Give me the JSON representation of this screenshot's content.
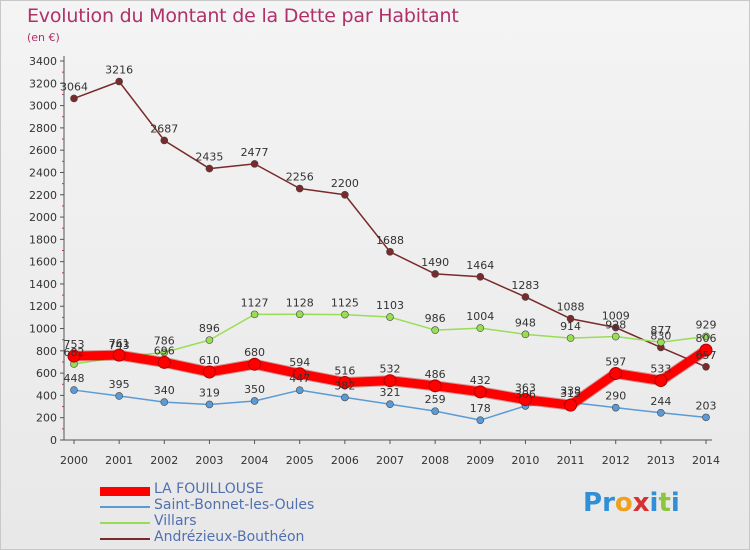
{
  "title": "Evolution du Montant de la Dette par Habitant",
  "subtitle": "(en €)",
  "brand": {
    "letters": [
      {
        "ch": "P",
        "color": "#2f8fd8"
      },
      {
        "ch": "r",
        "color": "#2f8fd8"
      },
      {
        "ch": "o",
        "color": "#f0a020"
      },
      {
        "ch": "x",
        "color": "#d83030"
      },
      {
        "ch": "i",
        "color": "#2f8fd8"
      },
      {
        "ch": "t",
        "color": "#8cc63f"
      },
      {
        "ch": "i",
        "color": "#2f8fd8"
      }
    ]
  },
  "chart_data": {
    "type": "line",
    "x": [
      "2000",
      "2001",
      "2002",
      "2003",
      "2004",
      "2005",
      "2006",
      "2007",
      "2008",
      "2009",
      "2010",
      "2011",
      "2012",
      "2013",
      "2014"
    ],
    "ylim": [
      0,
      3400
    ],
    "yticks": [
      0,
      200,
      400,
      600,
      800,
      1000,
      1200,
      1400,
      1600,
      1800,
      2000,
      2200,
      2400,
      2600,
      2800,
      3000,
      3200,
      3400
    ],
    "grid": false,
    "legend_position": "bottom-left",
    "series": [
      {
        "name": "LA FOUILLOUSE",
        "color": "#ff0000",
        "width": 9,
        "values": [
          753,
          761,
          696,
          610,
          680,
          594,
          516,
          532,
          486,
          432,
          363,
          313,
          597,
          533,
          806
        ],
        "labels": [
          "753",
          "761",
          "696",
          "610",
          "680",
          "594",
          "516",
          "532",
          "486",
          "432",
          "363",
          "313",
          "597",
          "533",
          "806"
        ]
      },
      {
        "name": "Saint-Bonnet-les-Oules",
        "color": "#5b9bd5",
        "width": 1.5,
        "values": [
          448,
          395,
          340,
          319,
          350,
          447,
          382,
          321,
          259,
          178,
          306,
          338,
          290,
          244,
          203
        ],
        "labels": [
          "448",
          "395",
          "340",
          "319",
          "350",
          "447",
          "382",
          "321",
          "259",
          "178",
          "306",
          "338",
          "290",
          "244",
          "203"
        ]
      },
      {
        "name": "Villars",
        "color": "#99dd55",
        "width": 1.5,
        "values": [
          682,
          743,
          786,
          896,
          1127,
          1128,
          1125,
          1103,
          986,
          1004,
          948,
          914,
          928,
          877,
          929
        ],
        "labels": [
          "682",
          "743",
          "786",
          "896",
          "1127",
          "1128",
          "1125",
          "1103",
          "986",
          "1004",
          "948",
          "914",
          "928",
          "877",
          "929"
        ]
      },
      {
        "name": "Andrézieux-Bouthéon",
        "color": "#7a2a2a",
        "width": 1.5,
        "values": [
          3064,
          3216,
          2687,
          2435,
          2477,
          2256,
          2200,
          1688,
          1490,
          1464,
          1283,
          1088,
          1009,
          830,
          657
        ],
        "labels": [
          "3064",
          "3216",
          "2687",
          "2435",
          "2477",
          "2256",
          "2200",
          "1688",
          "1490",
          "1464",
          "1283",
          "1088",
          "1009",
          "830",
          "657"
        ]
      }
    ]
  }
}
